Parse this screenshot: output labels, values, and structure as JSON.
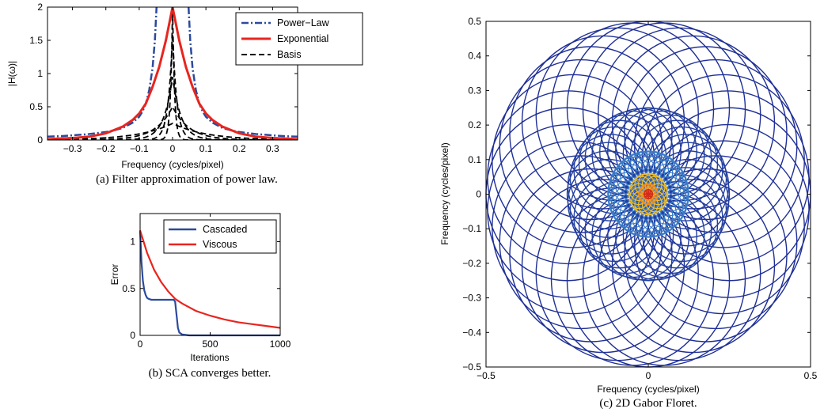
{
  "chart_data": [
    {
      "id": "a",
      "type": "line",
      "caption": "(a)  Filter approximation of power law.",
      "xlabel": "Frequency (cycles/pixel)",
      "ylabel": "|H(ω)|",
      "xlim": [
        -0.375,
        0.375
      ],
      "ylim": [
        0,
        2
      ],
      "xticks": [
        -0.3,
        -0.2,
        -0.1,
        0,
        0.1,
        0.2,
        0.3
      ],
      "xtick_labels": [
        "−0.3",
        "−0.2",
        "−0.1",
        "0",
        "0.1",
        "0.2",
        "0.3"
      ],
      "yticks": [
        0,
        0.5,
        1,
        1.5,
        2
      ],
      "ytick_labels": [
        "0",
        "0.5",
        "1",
        "1.5",
        "2"
      ],
      "legend_position": "top-right",
      "series": [
        {
          "name": "Power−Law",
          "color": "#2b4a9e",
          "style": "dashdot",
          "x": [
            -0.375,
            -0.33,
            -0.3,
            -0.25,
            -0.2,
            -0.18,
            -0.15,
            -0.12,
            -0.1,
            -0.09,
            -0.08,
            -0.07,
            -0.06,
            -0.053,
            -0.048,
            0.048,
            0.053,
            0.06,
            0.07,
            0.08,
            0.09,
            0.1,
            0.12,
            0.15,
            0.18,
            0.2,
            0.25,
            0.3,
            0.33,
            0.375
          ],
          "y": [
            0.05,
            0.06,
            0.07,
            0.09,
            0.12,
            0.14,
            0.18,
            0.26,
            0.35,
            0.43,
            0.55,
            0.75,
            1.08,
            1.5,
            2.0,
            2.0,
            1.5,
            1.08,
            0.75,
            0.55,
            0.43,
            0.35,
            0.26,
            0.18,
            0.14,
            0.12,
            0.09,
            0.07,
            0.06,
            0.05
          ]
        },
        {
          "name": "Exponential",
          "color": "#e8251f",
          "style": "solid",
          "x": [
            -0.375,
            -0.35,
            -0.3,
            -0.25,
            -0.2,
            -0.15,
            -0.12,
            -0.1,
            -0.08,
            -0.06,
            -0.04,
            -0.02,
            0,
            0.02,
            0.04,
            0.06,
            0.08,
            0.1,
            0.12,
            0.15,
            0.2,
            0.25,
            0.3,
            0.35,
            0.375
          ],
          "y": [
            0.01,
            0.02,
            0.03,
            0.05,
            0.1,
            0.2,
            0.3,
            0.4,
            0.55,
            0.8,
            1.1,
            1.5,
            2.0,
            1.5,
            1.1,
            0.8,
            0.55,
            0.4,
            0.3,
            0.2,
            0.1,
            0.05,
            0.03,
            0.02,
            0.01
          ]
        },
        {
          "name": "Basis",
          "color": "#000000",
          "style": "dashed",
          "components": [
            {
              "center": 0,
              "width": 0.006,
              "peak": 2.0
            },
            {
              "center": 0,
              "width": 0.013,
              "peak": 1.6
            },
            {
              "center": 0,
              "width": 0.026,
              "peak": 0.95
            },
            {
              "center": 0,
              "width": 0.05,
              "peak": 0.5
            },
            {
              "center": 0,
              "width": 0.1,
              "peak": 0.25
            }
          ]
        }
      ]
    },
    {
      "id": "b",
      "type": "line",
      "caption": "(b)  SCA converges better.",
      "xlabel": "Iterations",
      "ylabel": "Error",
      "xlim": [
        0,
        1000
      ],
      "ylim": [
        0,
        1.3
      ],
      "xticks": [
        0,
        500,
        1000
      ],
      "xtick_labels": [
        "0",
        "500",
        "1000"
      ],
      "yticks": [
        0,
        0.5,
        1
      ],
      "ytick_labels": [
        "0",
        "0.5",
        "1"
      ],
      "legend_position": "top-right",
      "series": [
        {
          "name": "Cascaded",
          "color": "#2b4a9e",
          "style": "solid",
          "x": [
            0,
            5,
            10,
            20,
            30,
            40,
            50,
            60,
            80,
            100,
            150,
            200,
            240,
            250,
            260,
            270,
            280,
            300,
            350,
            500,
            700,
            1000
          ],
          "y": [
            1.12,
            0.95,
            0.78,
            0.58,
            0.48,
            0.43,
            0.4,
            0.39,
            0.38,
            0.38,
            0.38,
            0.38,
            0.38,
            0.36,
            0.22,
            0.08,
            0.03,
            0.01,
            0.0,
            0.0,
            0.0,
            0.0
          ]
        },
        {
          "name": "Viscous",
          "color": "#e8251f",
          "style": "solid",
          "x": [
            0,
            50,
            100,
            150,
            200,
            250,
            300,
            400,
            500,
            600,
            700,
            800,
            900,
            1000
          ],
          "y": [
            1.12,
            0.88,
            0.7,
            0.57,
            0.47,
            0.39,
            0.34,
            0.26,
            0.21,
            0.17,
            0.14,
            0.12,
            0.1,
            0.08
          ]
        }
      ]
    },
    {
      "id": "c",
      "type": "line",
      "caption": "(c)  2D Gabor Floret.",
      "xlabel": "Frequency (cycles/pixel)",
      "ylabel": "Frequency (cycles/pixel)",
      "xlim": [
        -0.5,
        0.5
      ],
      "ylim": [
        -0.5,
        0.5
      ],
      "xticks": [
        -0.5,
        0,
        0.5
      ],
      "xtick_labels": [
        "−0.5",
        "0",
        "0.5"
      ],
      "yticks": [
        -0.5,
        -0.4,
        -0.3,
        -0.2,
        -0.1,
        0,
        0.1,
        0.2,
        0.3,
        0.4,
        0.5
      ],
      "ytick_labels": [
        "−0.5",
        "−0.4",
        "−0.3",
        "−0.2",
        "−0.1",
        "0",
        "0.1",
        "0.2",
        "0.3",
        "0.4",
        "0.5"
      ],
      "rings": [
        {
          "center_radius": 0.25,
          "circle_radius": 0.25,
          "count": 32,
          "color": "#1f2f96"
        },
        {
          "center_radius": 0.125,
          "circle_radius": 0.125,
          "count": 32,
          "color": "#24409f"
        },
        {
          "center_radius": 0.0625,
          "circle_radius": 0.0625,
          "count": 32,
          "color": "#3a7dc8"
        },
        {
          "center_radius": 0.03,
          "circle_radius": 0.03,
          "count": 16,
          "color": "#f2c12a"
        },
        {
          "center_radius": 0.015,
          "circle_radius": 0.015,
          "count": 12,
          "color": "#f08a1e"
        },
        {
          "center_radius": 0.007,
          "circle_radius": 0.007,
          "count": 8,
          "color": "#d42a1b"
        }
      ]
    }
  ]
}
